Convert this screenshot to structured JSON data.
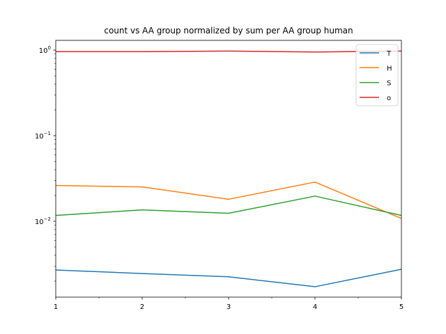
{
  "chart_data": {
    "type": "line",
    "title": "count vs AA group normalized by sum per AA group human",
    "xlabel": "",
    "ylabel": "",
    "x": [
      1,
      2,
      3,
      4,
      5
    ],
    "xlim": [
      1,
      5
    ],
    "x_major_ticks": [
      1,
      2,
      3,
      4,
      5
    ],
    "x_minor_ticks": [
      1.5,
      2.5,
      3.5,
      4.5
    ],
    "x_tick_labels": [
      "1",
      "2",
      "3",
      "4",
      "5"
    ],
    "yscale": "log",
    "ylim": [
      0.0013,
      1.3
    ],
    "y_major_ticks": [
      0.01,
      0.1,
      1
    ],
    "y_tick_labels": [
      {
        "base": "10",
        "exp": "−2"
      },
      {
        "base": "10",
        "exp": "−1"
      },
      {
        "base": "10",
        "exp": "0"
      }
    ],
    "grid": false,
    "legend_position": "upper right",
    "series": [
      {
        "name": "T",
        "color": "#1f77b4",
        "values": [
          0.0027,
          0.00245,
          0.00225,
          0.00172,
          0.00275
        ]
      },
      {
        "name": "H",
        "color": "#ff7f0e",
        "values": [
          0.0262,
          0.0252,
          0.0181,
          0.0287,
          0.0108
        ]
      },
      {
        "name": "S",
        "color": "#2ca02c",
        "values": [
          0.0117,
          0.0136,
          0.0124,
          0.0197,
          0.0117
        ]
      },
      {
        "name": "o",
        "color": "#d62728",
        "values": [
          0.96,
          0.96,
          0.975,
          0.95,
          0.975
        ]
      }
    ]
  }
}
